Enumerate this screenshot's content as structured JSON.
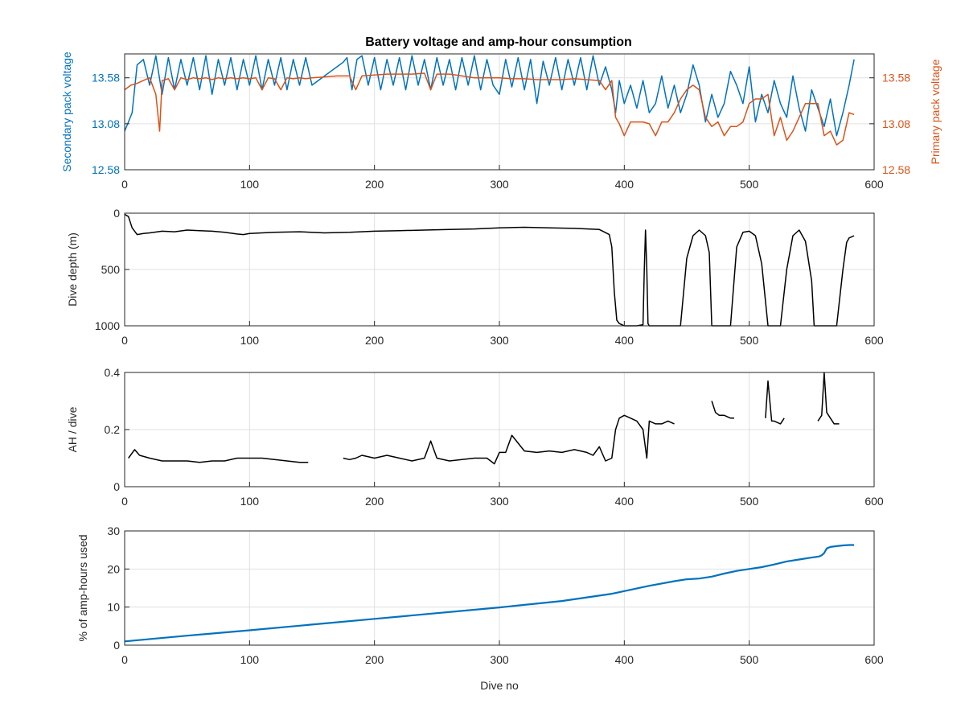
{
  "figure": {
    "title": "Battery voltage and amp-hour consumption",
    "xlabel": "Dive no"
  },
  "colors": {
    "secondary": "#0072BD",
    "primary": "#D95319",
    "black": "#000000",
    "grid": "#e0e0e0",
    "axis": "#262626",
    "series4": "#0072BD"
  },
  "chart_data": [
    {
      "type": "line",
      "title": "Battery voltage and amp-hour consumption",
      "xlabel": "",
      "ylabel": "Secondary pack voltage",
      "ylabel_right": "Primary pack voltage",
      "xlim": [
        0,
        600
      ],
      "ylim": [
        12.58,
        13.84
      ],
      "x_ticks": [
        "0",
        "100",
        "200",
        "300",
        "400",
        "500",
        "600"
      ],
      "y_ticks": [
        "12.58",
        "13.08",
        "13.58"
      ],
      "y_ticks_right": [
        "12.58",
        "13.08",
        "13.58"
      ],
      "grid": true,
      "series": [
        {
          "axis": "left",
          "color": "#0072BD",
          "x": [
            0,
            3,
            6,
            10,
            15,
            20,
            25,
            30,
            35,
            40,
            45,
            50,
            55,
            60,
            65,
            70,
            75,
            80,
            85,
            90,
            95,
            100,
            105,
            110,
            115,
            120,
            125,
            130,
            135,
            140,
            145,
            150,
            155,
            160,
            165,
            170,
            175,
            178,
            182,
            186,
            190,
            195,
            200,
            205,
            210,
            215,
            220,
            225,
            230,
            235,
            240,
            245,
            250,
            255,
            260,
            265,
            270,
            275,
            280,
            285,
            290,
            295,
            300,
            305,
            310,
            315,
            320,
            325,
            330,
            335,
            340,
            345,
            350,
            355,
            360,
            365,
            370,
            375,
            380,
            385,
            390,
            393,
            396,
            400,
            405,
            410,
            415,
            420,
            425,
            430,
            435,
            440,
            445,
            450,
            455,
            460,
            465,
            470,
            475,
            480,
            485,
            490,
            495,
            500,
            505,
            510,
            515,
            520,
            525,
            530,
            535,
            540,
            545,
            550,
            555,
            560,
            565,
            570,
            575,
            580,
            584
          ],
          "y": [
            13.0,
            13.1,
            13.2,
            13.72,
            13.78,
            13.5,
            13.82,
            13.4,
            13.8,
            13.45,
            13.78,
            13.5,
            13.8,
            13.45,
            13.82,
            13.4,
            13.78,
            13.5,
            13.8,
            13.45,
            13.78,
            13.5,
            13.82,
            13.45,
            13.78,
            13.5,
            13.8,
            13.45,
            13.78,
            13.5,
            13.8,
            13.5,
            13.55,
            13.6,
            13.65,
            13.7,
            13.75,
            13.8,
            13.45,
            13.78,
            13.82,
            13.5,
            13.8,
            13.45,
            13.78,
            13.5,
            13.8,
            13.45,
            13.82,
            13.5,
            13.78,
            13.45,
            13.8,
            13.5,
            13.78,
            13.45,
            13.8,
            13.5,
            13.82,
            13.45,
            13.78,
            13.5,
            13.4,
            13.78,
            13.48,
            13.8,
            13.45,
            13.78,
            13.3,
            13.76,
            13.5,
            13.8,
            13.45,
            13.78,
            13.5,
            13.8,
            13.45,
            13.82,
            13.5,
            13.7,
            13.45,
            13.2,
            13.55,
            13.3,
            13.5,
            13.25,
            13.55,
            13.2,
            13.3,
            13.6,
            13.25,
            13.5,
            13.2,
            13.4,
            13.72,
            13.5,
            13.1,
            13.4,
            13.15,
            13.3,
            13.65,
            13.5,
            13.3,
            13.7,
            13.1,
            13.4,
            13.2,
            13.55,
            13.3,
            13.15,
            13.6,
            13.25,
            13.0,
            13.45,
            13.25,
            13.05,
            13.35,
            12.95,
            13.2,
            13.5,
            13.78
          ]
        },
        {
          "axis": "right",
          "color": "#D95319",
          "x": [
            0,
            5,
            10,
            15,
            20,
            25,
            28,
            30,
            35,
            40,
            45,
            50,
            55,
            60,
            65,
            70,
            75,
            80,
            85,
            90,
            95,
            100,
            105,
            110,
            115,
            120,
            125,
            130,
            135,
            140,
            145,
            150,
            160,
            170,
            180,
            185,
            190,
            200,
            210,
            220,
            230,
            240,
            245,
            250,
            260,
            270,
            280,
            290,
            300,
            310,
            320,
            330,
            340,
            350,
            360,
            370,
            380,
            385,
            390,
            393,
            396,
            400,
            405,
            410,
            415,
            420,
            425,
            430,
            435,
            440,
            445,
            450,
            455,
            460,
            465,
            470,
            475,
            480,
            485,
            490,
            495,
            500,
            505,
            510,
            515,
            520,
            525,
            530,
            535,
            540,
            545,
            550,
            555,
            560,
            565,
            570,
            575,
            580,
            584
          ],
          "y": [
            13.45,
            13.5,
            13.52,
            13.55,
            13.58,
            13.4,
            13.0,
            13.55,
            13.57,
            13.45,
            13.58,
            13.56,
            13.58,
            13.57,
            13.58,
            13.56,
            13.58,
            13.57,
            13.58,
            13.57,
            13.58,
            13.57,
            13.58,
            13.45,
            13.58,
            13.57,
            13.45,
            13.58,
            13.57,
            13.58,
            13.57,
            13.58,
            13.59,
            13.6,
            13.6,
            13.45,
            13.6,
            13.61,
            13.62,
            13.62,
            13.62,
            13.63,
            13.45,
            13.62,
            13.62,
            13.6,
            13.58,
            13.58,
            13.58,
            13.57,
            13.57,
            13.56,
            13.56,
            13.56,
            13.57,
            13.56,
            13.55,
            13.45,
            13.55,
            13.15,
            13.08,
            12.95,
            13.1,
            13.1,
            13.1,
            13.08,
            12.95,
            13.1,
            13.1,
            13.2,
            13.35,
            13.45,
            13.5,
            13.45,
            13.15,
            13.05,
            13.1,
            12.95,
            13.05,
            13.05,
            13.1,
            13.3,
            13.35,
            13.35,
            13.4,
            12.95,
            13.15,
            12.9,
            13.0,
            13.15,
            13.3,
            13.3,
            13.3,
            12.95,
            13.0,
            12.85,
            12.9,
            13.2,
            13.18
          ]
        }
      ]
    },
    {
      "type": "line",
      "title": "",
      "xlabel": "",
      "ylabel": "Dive depth (m)",
      "xlim": [
        0,
        600
      ],
      "ylim": [
        1000,
        0
      ],
      "y_reversed": true,
      "x_ticks": [
        "0",
        "100",
        "200",
        "300",
        "400",
        "500",
        "600"
      ],
      "y_ticks": [
        "0",
        "500",
        "1000"
      ],
      "grid": true,
      "series": [
        {
          "color": "#000000",
          "x": [
            0,
            3,
            6,
            10,
            15,
            20,
            30,
            40,
            50,
            60,
            70,
            80,
            90,
            95,
            100,
            120,
            140,
            160,
            180,
            200,
            220,
            240,
            260,
            280,
            300,
            320,
            340,
            360,
            380,
            388,
            390,
            392,
            394,
            396,
            398,
            400,
            405,
            410,
            415,
            416,
            417,
            418,
            419,
            420,
            421,
            425,
            430,
            435,
            440,
            445,
            450,
            455,
            460,
            465,
            468,
            470,
            480,
            485,
            490,
            495,
            500,
            505,
            510,
            515,
            518,
            520,
            525,
            530,
            535,
            540,
            545,
            550,
            552,
            555,
            560,
            565,
            570,
            575,
            578,
            580,
            584
          ],
          "y": [
            10,
            30,
            130,
            190,
            180,
            175,
            160,
            165,
            150,
            155,
            160,
            170,
            185,
            190,
            180,
            170,
            165,
            175,
            170,
            160,
            155,
            150,
            145,
            140,
            130,
            125,
            130,
            135,
            145,
            190,
            300,
            700,
            950,
            980,
            990,
            1000,
            1000,
            1000,
            990,
            500,
            150,
            500,
            980,
            1000,
            1000,
            1000,
            1000,
            1000,
            1000,
            1000,
            400,
            200,
            150,
            200,
            350,
            1000,
            1000,
            1000,
            300,
            170,
            160,
            200,
            450,
            1000,
            1000,
            1000,
            1000,
            500,
            200,
            150,
            250,
            600,
            1000,
            1000,
            1000,
            1000,
            1000,
            500,
            260,
            220,
            200
          ]
        }
      ]
    },
    {
      "type": "line",
      "title": "",
      "xlabel": "",
      "ylabel": "AH / dive",
      "xlim": [
        0,
        600
      ],
      "ylim": [
        0,
        0.4
      ],
      "x_ticks": [
        "0",
        "100",
        "200",
        "300",
        "400",
        "500",
        "600"
      ],
      "y_ticks": [
        "0",
        "0.2",
        "0.4"
      ],
      "grid": true,
      "series": [
        {
          "color": "#000000",
          "x": [
            3,
            8,
            12,
            20,
            30,
            40,
            50,
            60,
            70,
            80,
            90,
            100,
            110,
            120,
            130,
            140,
            147,
            null,
            150,
            null,
            175,
            180,
            185,
            190,
            200,
            210,
            220,
            230,
            240,
            245,
            250,
            260,
            270,
            280,
            290,
            296,
            300,
            305,
            310,
            320,
            330,
            340,
            350,
            360,
            370,
            375,
            380,
            385,
            390,
            393,
            396,
            400,
            405,
            410,
            415,
            418,
            420,
            425,
            430,
            435,
            440,
            null,
            470,
            473,
            476,
            480,
            485,
            488,
            null,
            513,
            515,
            518,
            520,
            525,
            528,
            null,
            555,
            558,
            560,
            562,
            565,
            568,
            572
          ],
          "y": [
            0.1,
            0.13,
            0.11,
            0.1,
            0.09,
            0.09,
            0.09,
            0.085,
            0.09,
            0.09,
            0.1,
            0.1,
            0.1,
            0.095,
            0.09,
            0.085,
            0.085,
            null,
            0.155,
            null,
            0.1,
            0.095,
            0.1,
            0.11,
            0.1,
            0.11,
            0.1,
            0.09,
            0.1,
            0.16,
            0.1,
            0.09,
            0.095,
            0.1,
            0.1,
            0.08,
            0.12,
            0.12,
            0.18,
            0.125,
            0.12,
            0.125,
            0.12,
            0.13,
            0.12,
            0.11,
            0.14,
            0.09,
            0.1,
            0.2,
            0.24,
            0.25,
            0.24,
            0.23,
            0.2,
            0.1,
            0.23,
            0.22,
            0.22,
            0.23,
            0.22,
            null,
            0.3,
            0.26,
            0.25,
            0.25,
            0.24,
            0.24,
            null,
            0.24,
            0.37,
            0.23,
            0.23,
            0.22,
            0.24,
            null,
            0.23,
            0.25,
            0.4,
            0.26,
            0.24,
            0.22,
            0.22
          ]
        }
      ]
    },
    {
      "type": "line",
      "title": "",
      "xlabel": "Dive no",
      "ylabel": "% of amp-hours used",
      "xlim": [
        0,
        600
      ],
      "ylim": [
        0,
        30
      ],
      "x_ticks": [
        "0",
        "100",
        "200",
        "300",
        "400",
        "500",
        "600"
      ],
      "y_ticks": [
        "0",
        "10",
        "20",
        "30"
      ],
      "grid": true,
      "series": [
        {
          "color": "#0072BD",
          "x": [
            0,
            50,
            100,
            150,
            200,
            250,
            300,
            350,
            390,
            400,
            420,
            440,
            450,
            460,
            470,
            480,
            490,
            500,
            510,
            520,
            530,
            540,
            550,
            556,
            558,
            560,
            562,
            565,
            570,
            575,
            580,
            584
          ],
          "y": [
            1.0,
            2.5,
            3.9,
            5.4,
            6.9,
            8.4,
            9.9,
            11.6,
            13.5,
            14.2,
            15.6,
            16.8,
            17.3,
            17.5,
            18.0,
            18.8,
            19.5,
            20.0,
            20.5,
            21.2,
            22.0,
            22.5,
            23.0,
            23.3,
            23.6,
            24.2,
            25.4,
            25.8,
            26.0,
            26.2,
            26.3,
            26.3
          ]
        }
      ]
    }
  ]
}
